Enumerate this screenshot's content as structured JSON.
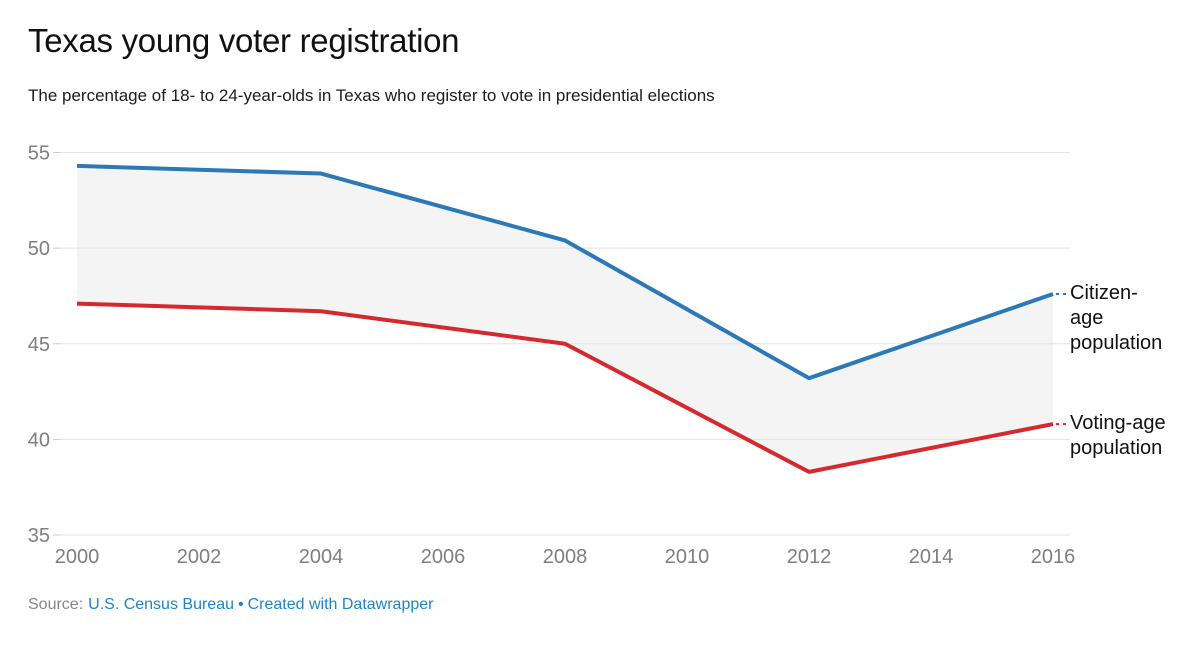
{
  "header": {
    "title": "Texas young voter registration",
    "subtitle": "The percentage of 18- to 24-year-olds in Texas who register to vote in presidential elections"
  },
  "chart_data": {
    "type": "line",
    "title": "Texas young voter registration",
    "subtitle": "The percentage of 18- to 24-year-olds in Texas who register to vote in presidential elections",
    "x": [
      2000,
      2004,
      2008,
      2012,
      2016
    ],
    "series": [
      {
        "name": "Citizen-age population",
        "color": "#2d78b6",
        "values": [
          54.3,
          53.9,
          50.4,
          43.2,
          47.6
        ]
      },
      {
        "name": "Voting-age population",
        "color": "#d6292f",
        "values": [
          47.1,
          46.7,
          45.0,
          38.3,
          40.8
        ]
      }
    ],
    "band_fill": "#f4f4f4",
    "ylim": [
      35,
      55
    ],
    "yticks": [
      35,
      40,
      45,
      50,
      55
    ],
    "xticks": [
      2000,
      2002,
      2004,
      2006,
      2008,
      2010,
      2012,
      2014,
      2016
    ],
    "grid": "horizontal",
    "legend_position": "right-edge-labels"
  },
  "footer": {
    "source_label": "Source:",
    "source_link": "U.S. Census Bureau",
    "separator": "•",
    "credit_link": "Created with Datawrapper"
  },
  "colors": {
    "citizen_line": "#2d78b6",
    "voting_line": "#d6292f",
    "band_fill": "#f4f4f4",
    "gridline": "#e3e3e3",
    "tick_mark": "#cbcbcb",
    "axis_text": "#7f7f7f",
    "label_text": "#111111",
    "link_blue": "#1e86c7",
    "title_text": "#111111"
  }
}
